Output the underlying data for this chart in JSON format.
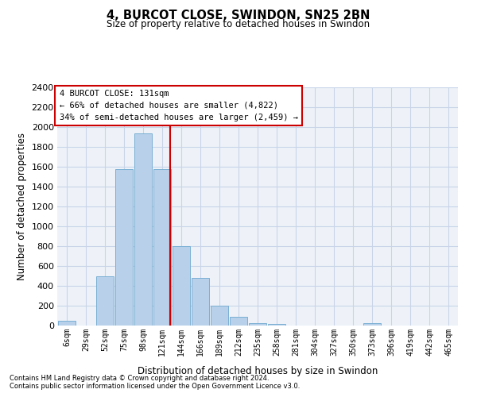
{
  "title": "4, BURCOT CLOSE, SWINDON, SN25 2BN",
  "subtitle": "Size of property relative to detached houses in Swindon",
  "xlabel": "Distribution of detached houses by size in Swindon",
  "ylabel": "Number of detached properties",
  "categories": [
    "6sqm",
    "29sqm",
    "52sqm",
    "75sqm",
    "98sqm",
    "121sqm",
    "144sqm",
    "166sqm",
    "189sqm",
    "212sqm",
    "235sqm",
    "258sqm",
    "281sqm",
    "304sqm",
    "327sqm",
    "350sqm",
    "373sqm",
    "396sqm",
    "419sqm",
    "442sqm",
    "465sqm"
  ],
  "values": [
    50,
    0,
    500,
    1580,
    1940,
    1580,
    800,
    480,
    200,
    90,
    25,
    20,
    0,
    0,
    0,
    0,
    25,
    0,
    0,
    0,
    0
  ],
  "bar_color": "#b8d0ea",
  "bar_edgecolor": "#7aafd4",
  "vline_color": "#cc0000",
  "annotation_text": "4 BURCOT CLOSE: 131sqm\n← 66% of detached houses are smaller (4,822)\n34% of semi-detached houses are larger (2,459) →",
  "annotation_box_color": "#ffffff",
  "annotation_box_edgecolor": "#cc0000",
  "ylim": [
    0,
    2400
  ],
  "yticks": [
    0,
    200,
    400,
    600,
    800,
    1000,
    1200,
    1400,
    1600,
    1800,
    2000,
    2200,
    2400
  ],
  "grid_color": "#c8d4e8",
  "background_color": "#eef2f8",
  "footer1": "Contains HM Land Registry data © Crown copyright and database right 2024.",
  "footer2": "Contains public sector information licensed under the Open Government Licence v3.0."
}
